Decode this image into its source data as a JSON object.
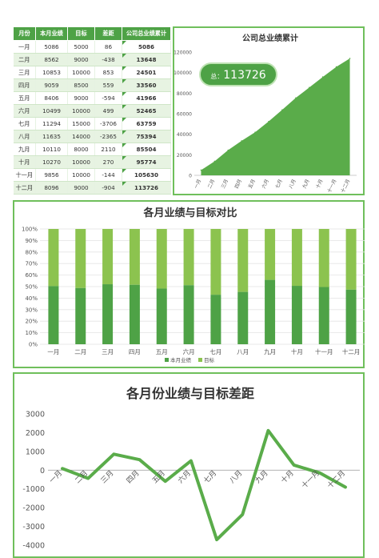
{
  "table": {
    "headers": [
      "月份",
      "本月业绩",
      "目标",
      "差距",
      "公司总业绩累计"
    ],
    "rows": [
      [
        "一月",
        "5086",
        "5000",
        "86",
        "5086"
      ],
      [
        "二月",
        "8562",
        "9000",
        "-438",
        "13648"
      ],
      [
        "三月",
        "10853",
        "10000",
        "853",
        "24501"
      ],
      [
        "四月",
        "9059",
        "8500",
        "559",
        "33560"
      ],
      [
        "五月",
        "8406",
        "9000",
        "-594",
        "41966"
      ],
      [
        "六月",
        "10499",
        "10000",
        "499",
        "52465"
      ],
      [
        "七月",
        "11294",
        "15000",
        "-3706",
        "63759"
      ],
      [
        "八月",
        "11635",
        "14000",
        "-2365",
        "75394"
      ],
      [
        "九月",
        "10110",
        "8000",
        "2110",
        "85504"
      ],
      [
        "十月",
        "10270",
        "10000",
        "270",
        "95774"
      ],
      [
        "十一月",
        "9856",
        "10000",
        "-144",
        "105630"
      ],
      [
        "十二月",
        "8096",
        "9000",
        "-904",
        "113726"
      ]
    ]
  },
  "cumulative_badge": {
    "label": "总：",
    "value": "113726"
  },
  "colors": {
    "dark_green": "#4ea246",
    "light_green": "#8cc34f",
    "area_green": "#5aac4a",
    "border": "#6fbf5b"
  },
  "chart_data": [
    {
      "type": "area",
      "title": "公司总业绩累计",
      "categories": [
        "一月",
        "二月",
        "三月",
        "四月",
        "五月",
        "六月",
        "七月",
        "八月",
        "九月",
        "十月",
        "十一月",
        "十二月"
      ],
      "values": [
        5086,
        13648,
        24501,
        33560,
        41966,
        52465,
        63759,
        75394,
        85504,
        95774,
        105630,
        113726
      ],
      "ylim": [
        0,
        120000
      ],
      "yticks": [
        0,
        20000,
        40000,
        60000,
        80000,
        100000,
        120000
      ],
      "grid": false
    },
    {
      "type": "bar",
      "stacked_percent": true,
      "title": "各月业绩与目标对比",
      "categories": [
        "一月",
        "二月",
        "三月",
        "四月",
        "五月",
        "六月",
        "七月",
        "八月",
        "九月",
        "十月",
        "十一月",
        "十二月"
      ],
      "series": [
        {
          "name": "本月业绩",
          "values": [
            5086,
            8562,
            10853,
            9059,
            8406,
            10499,
            11294,
            11635,
            10110,
            10270,
            9856,
            8096
          ]
        },
        {
          "name": "目标",
          "values": [
            5000,
            9000,
            10000,
            8500,
            9000,
            10000,
            15000,
            14000,
            8000,
            10000,
            10000,
            9000
          ]
        }
      ],
      "yticks": [
        "0%",
        "10%",
        "20%",
        "30%",
        "40%",
        "50%",
        "60%",
        "70%",
        "80%",
        "90%",
        "100%"
      ],
      "legend": "bottom",
      "grid": true
    },
    {
      "type": "line",
      "title": "各月份业绩与目标差距",
      "categories": [
        "一月",
        "二月",
        "三月",
        "四月",
        "五月",
        "六月",
        "七月",
        "八月",
        "九月",
        "十月",
        "十一月",
        "十二月"
      ],
      "values": [
        86,
        -438,
        853,
        559,
        -594,
        499,
        -3706,
        -2365,
        2110,
        270,
        -144,
        -904
      ],
      "ylim": [
        -4000,
        3000
      ],
      "yticks": [
        3000,
        2000,
        1000,
        0,
        -1000,
        -2000,
        -3000,
        -4000
      ],
      "grid": false
    }
  ]
}
